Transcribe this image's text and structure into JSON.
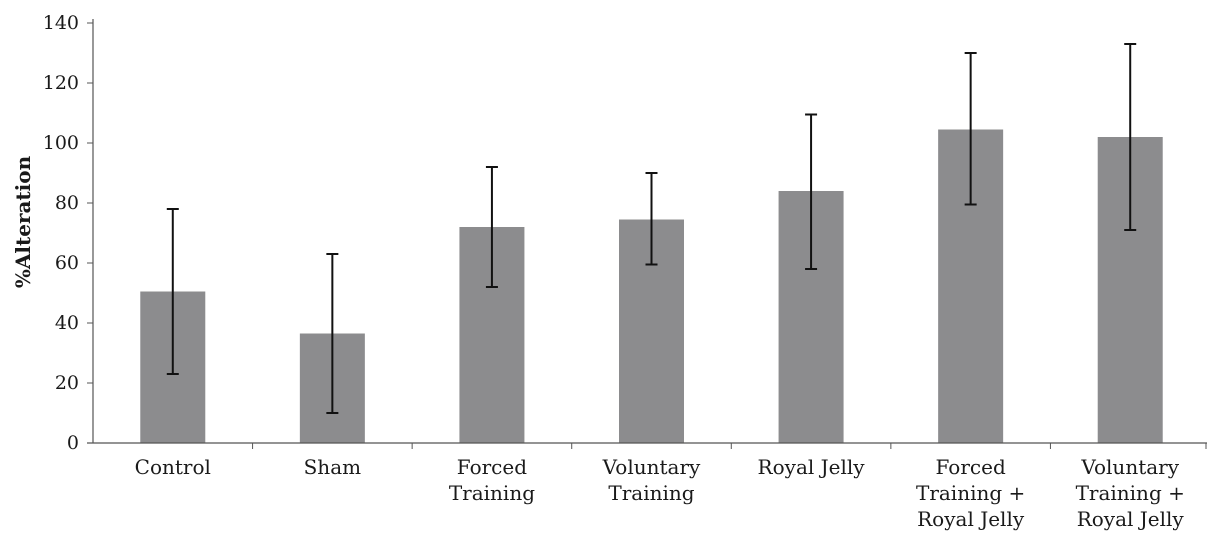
{
  "chart_data": {
    "type": "bar",
    "title": "",
    "xlabel": "",
    "ylabel": "%Alteration",
    "ylim": [
      0,
      140
    ],
    "yticks": [
      0,
      20,
      40,
      60,
      80,
      100,
      120,
      140
    ],
    "grid": false,
    "legend": "none",
    "categories": [
      [
        "Control"
      ],
      [
        "Sham"
      ],
      [
        "Forced",
        "Training"
      ],
      [
        "Voluntary",
        "Training"
      ],
      [
        "Royal Jelly"
      ],
      [
        "Forced",
        "Training +",
        "Royal Jelly"
      ],
      [
        "Voluntary",
        "Training +",
        "Royal Jelly"
      ]
    ],
    "values": [
      50.5,
      36.5,
      72,
      74.5,
      84,
      104.5,
      102
    ],
    "error_low": [
      23,
      10,
      52,
      59.5,
      58,
      79.5,
      71
    ],
    "error_high": [
      78,
      63,
      92,
      90,
      109.5,
      130,
      133
    ],
    "bar_color": "#8c8c8e",
    "axis_color": "#555555"
  }
}
